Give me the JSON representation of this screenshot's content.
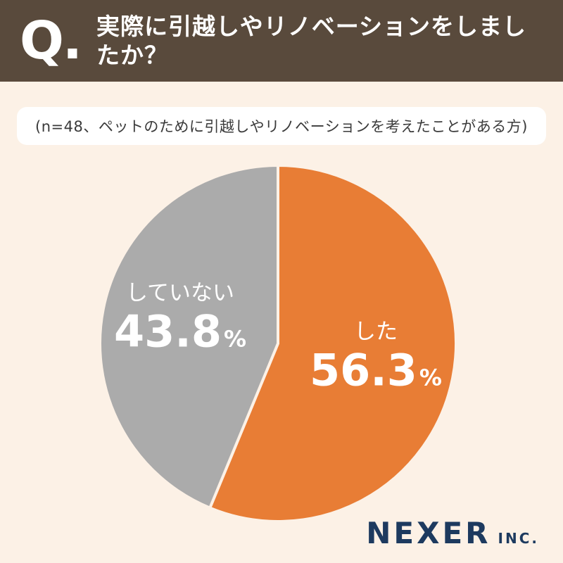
{
  "header": {
    "q_mark": "Q.",
    "title": "実際に引越しやリノベーションをしましたか？"
  },
  "subtitle": "(n=48、ペットのために引越しやリノベーションを考えたことがある方)",
  "chart_data": {
    "type": "pie",
    "title": "実際に引越しやリノベーションをしましたか？",
    "sample_note": "n=48、ペットのために引越しやリノベーションを考えたことがある方",
    "start_angle_deg": -90,
    "direction": "clockwise",
    "unit": "%",
    "slices": [
      {
        "label": "した",
        "value": 56.3,
        "color": "#e87d35"
      },
      {
        "label": "していない",
        "value": 43.8,
        "color": "#ababab"
      }
    ],
    "legend": "none",
    "data_labels": "inside"
  },
  "footer": {
    "brand": "NEXER",
    "brand_suffix": "INC."
  }
}
